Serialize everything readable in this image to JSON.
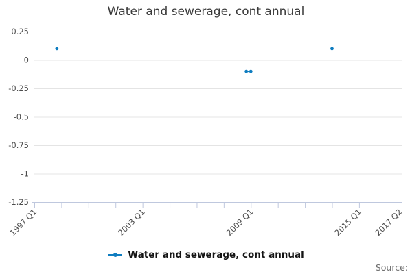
{
  "header": {
    "title": "Water and sewerage, cont annual"
  },
  "legend": {
    "label": "Water and sewerage, cont annual"
  },
  "footer": {
    "source_label": "Source:"
  },
  "colors": {
    "series": "#0f7dc0",
    "grid": "#e4e4e4",
    "axis": "#bfc8de",
    "tick_text": "#4d4d4d",
    "title_text": "#3a3a3a",
    "source_text": "#6e6e6e"
  },
  "chart_data": {
    "type": "line",
    "title": "Water and sewerage, cont annual",
    "xlabel": "",
    "ylabel": "",
    "grid": "horizontal",
    "legend_position": "bottom",
    "x_range": [
      "1997 Q1",
      "2017 Q2"
    ],
    "x_tick_labels": [
      "1997 Q1",
      "2003 Q1",
      "2009 Q1",
      "2015 Q1",
      "2017 Q2"
    ],
    "minor_tick_step_quarters": 6,
    "y_ticks": [
      0.25,
      0,
      -0.25,
      -0.5,
      -0.75,
      -1,
      -1.25
    ],
    "ylim": [
      -1.25,
      0.25
    ],
    "series": [
      {
        "name": "Water and sewerage, cont annual",
        "color": "#0f7dc0",
        "points": [
          {
            "quarter": "1998 Q2",
            "value": 0.1
          },
          {
            "quarter": "2008 Q4",
            "value": -0.1
          },
          {
            "quarter": "2009 Q1",
            "value": -0.1
          },
          {
            "quarter": "2013 Q3",
            "value": 0.1
          }
        ]
      }
    ]
  }
}
